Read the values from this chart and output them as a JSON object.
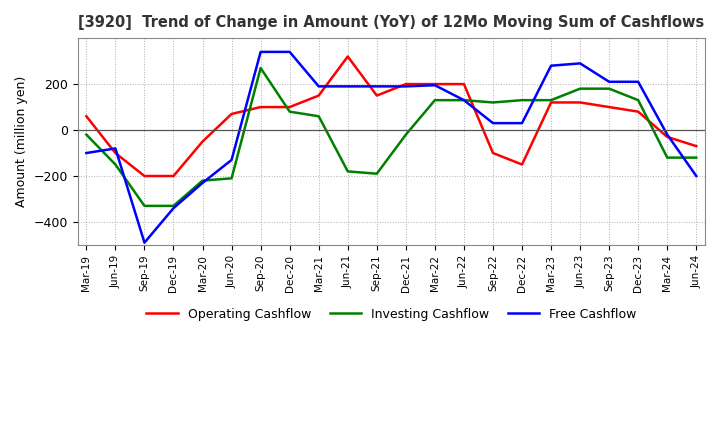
{
  "title": "[3920]  Trend of Change in Amount (YoY) of 12Mo Moving Sum of Cashflows",
  "ylabel": "Amount (million yen)",
  "ylim": [
    -500,
    400
  ],
  "yticks": [
    -400,
    -200,
    0,
    200
  ],
  "x_labels": [
    "Mar-19",
    "Jun-19",
    "Sep-19",
    "Dec-19",
    "Mar-20",
    "Jun-20",
    "Sep-20",
    "Dec-20",
    "Mar-21",
    "Jun-21",
    "Sep-21",
    "Dec-21",
    "Mar-22",
    "Jun-22",
    "Sep-22",
    "Dec-22",
    "Mar-23",
    "Jun-23",
    "Sep-23",
    "Dec-23",
    "Mar-24",
    "Jun-24"
  ],
  "operating": [
    60,
    -100,
    -200,
    -200,
    -50,
    70,
    100,
    100,
    150,
    320,
    150,
    200,
    200,
    200,
    -100,
    -150,
    120,
    120,
    100,
    80,
    -30,
    -70
  ],
  "investing": [
    -20,
    -150,
    -330,
    -330,
    -220,
    -210,
    270,
    80,
    60,
    -180,
    -190,
    -20,
    130,
    130,
    120,
    130,
    130,
    180,
    180,
    130,
    -120,
    -120
  ],
  "free": [
    -100,
    -80,
    -490,
    -340,
    -230,
    -130,
    340,
    340,
    190,
    190,
    190,
    190,
    195,
    130,
    30,
    30,
    280,
    290,
    210,
    210,
    -20,
    -200
  ],
  "operating_color": "#ff0000",
  "investing_color": "#008000",
  "free_color": "#0000ff",
  "legend_labels": [
    "Operating Cashflow",
    "Investing Cashflow",
    "Free Cashflow"
  ],
  "background_color": "#ffffff",
  "grid_color": "#b0b0b0"
}
